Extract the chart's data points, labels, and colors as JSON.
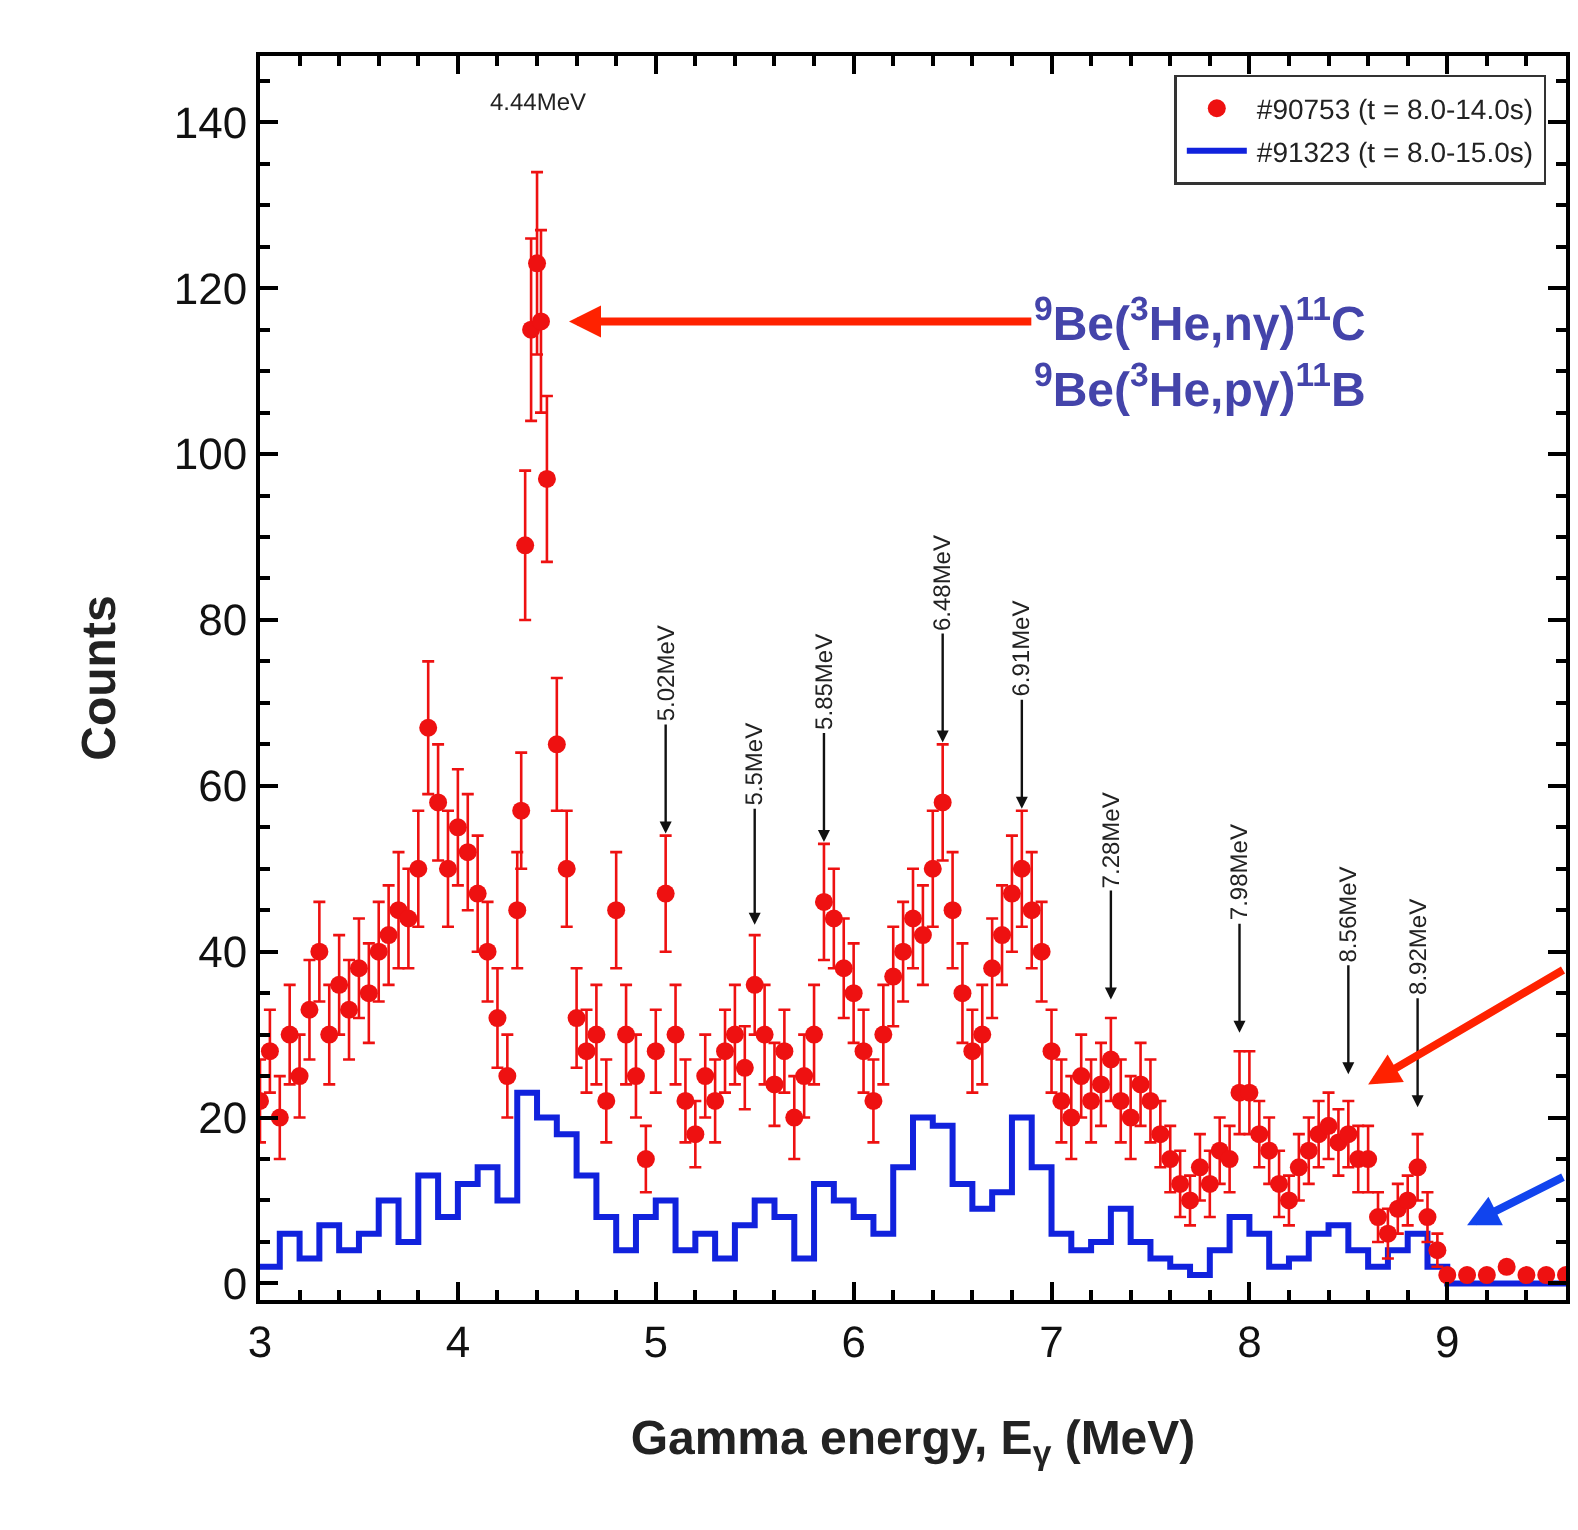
{
  "chart_data": {
    "type": "scatter",
    "xlabel": "Gamma energy, E$_{γ}$ (MeV)",
    "ylabel": "Counts",
    "xlim": [
      3,
      9.6
    ],
    "xticks": [
      3,
      4,
      5,
      6,
      7,
      8,
      9
    ],
    "ylim": [
      -2,
      148
    ],
    "yticks": [
      0,
      20,
      40,
      60,
      80,
      100,
      120,
      140
    ],
    "legend": "top right",
    "series": [
      {
        "name": "#90753 (t = 8.0-14.0s)",
        "color": "#ee1111",
        "marker": "circle",
        "x": [
          3.0,
          3.05,
          3.1,
          3.15,
          3.2,
          3.25,
          3.3,
          3.35,
          3.4,
          3.45,
          3.5,
          3.55,
          3.6,
          3.65,
          3.7,
          3.75,
          3.8,
          3.85,
          3.9,
          3.95,
          4.0,
          4.05,
          4.1,
          4.15,
          4.2,
          4.25,
          4.3,
          4.32,
          4.34,
          4.37,
          4.4,
          4.42,
          4.45,
          4.5,
          4.55,
          4.6,
          4.65,
          4.7,
          4.75,
          4.8,
          4.85,
          4.9,
          4.95,
          5.0,
          5.05,
          5.1,
          5.15,
          5.2,
          5.25,
          5.3,
          5.35,
          5.4,
          5.45,
          5.5,
          5.55,
          5.6,
          5.65,
          5.7,
          5.75,
          5.8,
          5.85,
          5.9,
          5.95,
          6.0,
          6.05,
          6.1,
          6.15,
          6.2,
          6.25,
          6.3,
          6.35,
          6.4,
          6.45,
          6.5,
          6.55,
          6.6,
          6.65,
          6.7,
          6.75,
          6.8,
          6.85,
          6.9,
          6.95,
          7.0,
          7.05,
          7.1,
          7.15,
          7.2,
          7.25,
          7.3,
          7.35,
          7.4,
          7.45,
          7.5,
          7.55,
          7.6,
          7.65,
          7.7,
          7.75,
          7.8,
          7.85,
          7.9,
          7.95,
          8.0,
          8.05,
          8.1,
          8.15,
          8.2,
          8.25,
          8.3,
          8.35,
          8.4,
          8.45,
          8.5,
          8.55,
          8.6,
          8.65,
          8.7,
          8.75,
          8.8,
          8.85,
          8.9,
          8.95,
          9.0,
          9.1,
          9.2,
          9.3,
          9.4,
          9.5,
          9.6
        ],
        "values": [
          22,
          28,
          20,
          30,
          25,
          33,
          40,
          30,
          36,
          33,
          38,
          35,
          40,
          42,
          45,
          44,
          50,
          67,
          58,
          50,
          55,
          52,
          47,
          40,
          32,
          25,
          45,
          57,
          89,
          115,
          123,
          116,
          97,
          65,
          50,
          32,
          28,
          30,
          22,
          45,
          30,
          25,
          15,
          28,
          47,
          30,
          22,
          18,
          25,
          22,
          28,
          30,
          26,
          36,
          30,
          24,
          28,
          20,
          25,
          30,
          46,
          44,
          38,
          35,
          28,
          22,
          30,
          37,
          40,
          44,
          42,
          50,
          58,
          45,
          35,
          28,
          30,
          38,
          42,
          47,
          50,
          45,
          40,
          28,
          22,
          20,
          25,
          22,
          24,
          27,
          22,
          20,
          24,
          22,
          18,
          15,
          12,
          10,
          14,
          12,
          16,
          15,
          23,
          23,
          18,
          16,
          12,
          10,
          14,
          16,
          18,
          19,
          17,
          18,
          15,
          15,
          8,
          6,
          9,
          10,
          14,
          8,
          4,
          1,
          1,
          1,
          2,
          1,
          1,
          1
        ],
        "errors": [
          5,
          5,
          5,
          6,
          5,
          6,
          6,
          6,
          6,
          6,
          6,
          6,
          6,
          6,
          7,
          6,
          7,
          8,
          7,
          7,
          7,
          7,
          7,
          6,
          6,
          5,
          7,
          7,
          9,
          11,
          11,
          11,
          10,
          8,
          7,
          6,
          5,
          6,
          5,
          7,
          6,
          5,
          4,
          5,
          7,
          6,
          5,
          4,
          5,
          5,
          5,
          6,
          5,
          6,
          6,
          5,
          5,
          5,
          5,
          6,
          7,
          6,
          6,
          6,
          5,
          5,
          6,
          6,
          6,
          6,
          6,
          7,
          7,
          7,
          6,
          5,
          6,
          6,
          6,
          7,
          7,
          7,
          6,
          5,
          5,
          5,
          5,
          5,
          5,
          5,
          5,
          5,
          5,
          5,
          4,
          4,
          4,
          3,
          4,
          4,
          4,
          4,
          5,
          5,
          4,
          4,
          4,
          3,
          4,
          4,
          4,
          4,
          4,
          4,
          4,
          4,
          3,
          3,
          3,
          3,
          4,
          3,
          2,
          null,
          null,
          null,
          null,
          null,
          null,
          null
        ]
      },
      {
        "name": "#91323 (t = 8.0-15.0s)",
        "color": "#1122dd",
        "type": "step",
        "marker": "none",
        "x": [
          3.0,
          3.1,
          3.2,
          3.3,
          3.4,
          3.5,
          3.6,
          3.7,
          3.8,
          3.9,
          4.0,
          4.1,
          4.2,
          4.3,
          4.4,
          4.5,
          4.6,
          4.7,
          4.8,
          4.9,
          5.0,
          5.1,
          5.2,
          5.3,
          5.4,
          5.5,
          5.6,
          5.7,
          5.8,
          5.9,
          6.0,
          6.1,
          6.2,
          6.3,
          6.4,
          6.5,
          6.6,
          6.7,
          6.8,
          6.9,
          7.0,
          7.1,
          7.2,
          7.3,
          7.4,
          7.5,
          7.6,
          7.7,
          7.8,
          7.9,
          8.0,
          8.1,
          8.2,
          8.3,
          8.4,
          8.5,
          8.6,
          8.7,
          8.8,
          8.9,
          9.0,
          9.1,
          9.2,
          9.3,
          9.4,
          9.5,
          9.6
        ],
        "values": [
          2,
          6,
          3,
          7,
          4,
          6,
          10,
          5,
          13,
          8,
          12,
          14,
          10,
          23,
          20,
          18,
          13,
          8,
          4,
          8,
          10,
          4,
          6,
          3,
          7,
          10,
          8,
          3,
          12,
          10,
          8,
          6,
          14,
          20,
          19,
          12,
          9,
          11,
          20,
          14,
          6,
          4,
          5,
          9,
          5,
          3,
          2,
          1,
          4,
          8,
          6,
          2,
          3,
          6,
          7,
          4,
          2,
          4,
          6,
          2,
          0,
          0,
          0,
          0,
          0,
          0,
          0
        ]
      }
    ],
    "annotations": [
      "4.44MeV",
      {
        "text": "$^{9}$Be($^{3}$He,nγ)$^{11}$C",
        "x": 4.42,
        "y": 116
      },
      "$^{9}$Be($^{3}$He,pγ)$^{11}$B",
      {
        "text": "5.02MeV",
        "x": 5.05,
        "y": 47
      },
      {
        "text": "5.5MeV",
        "x": 5.5,
        "y": 36
      },
      {
        "text": "5.85MeV",
        "x": 5.85,
        "y": 46
      },
      {
        "text": "6.48MeV",
        "x": 6.45,
        "y": 58
      },
      {
        "text": "6.91MeV",
        "x": 6.85,
        "y": 50
      },
      {
        "text": "7.28MeV",
        "x": 7.3,
        "y": 27
      },
      {
        "text": "7.98MeV",
        "x": 7.95,
        "y": 23
      },
      {
        "text": "8.56MeV",
        "x": 8.5,
        "y": 18
      },
      {
        "text": "8.92MeV",
        "x": 8.85,
        "y": 14
      }
    ]
  }
}
